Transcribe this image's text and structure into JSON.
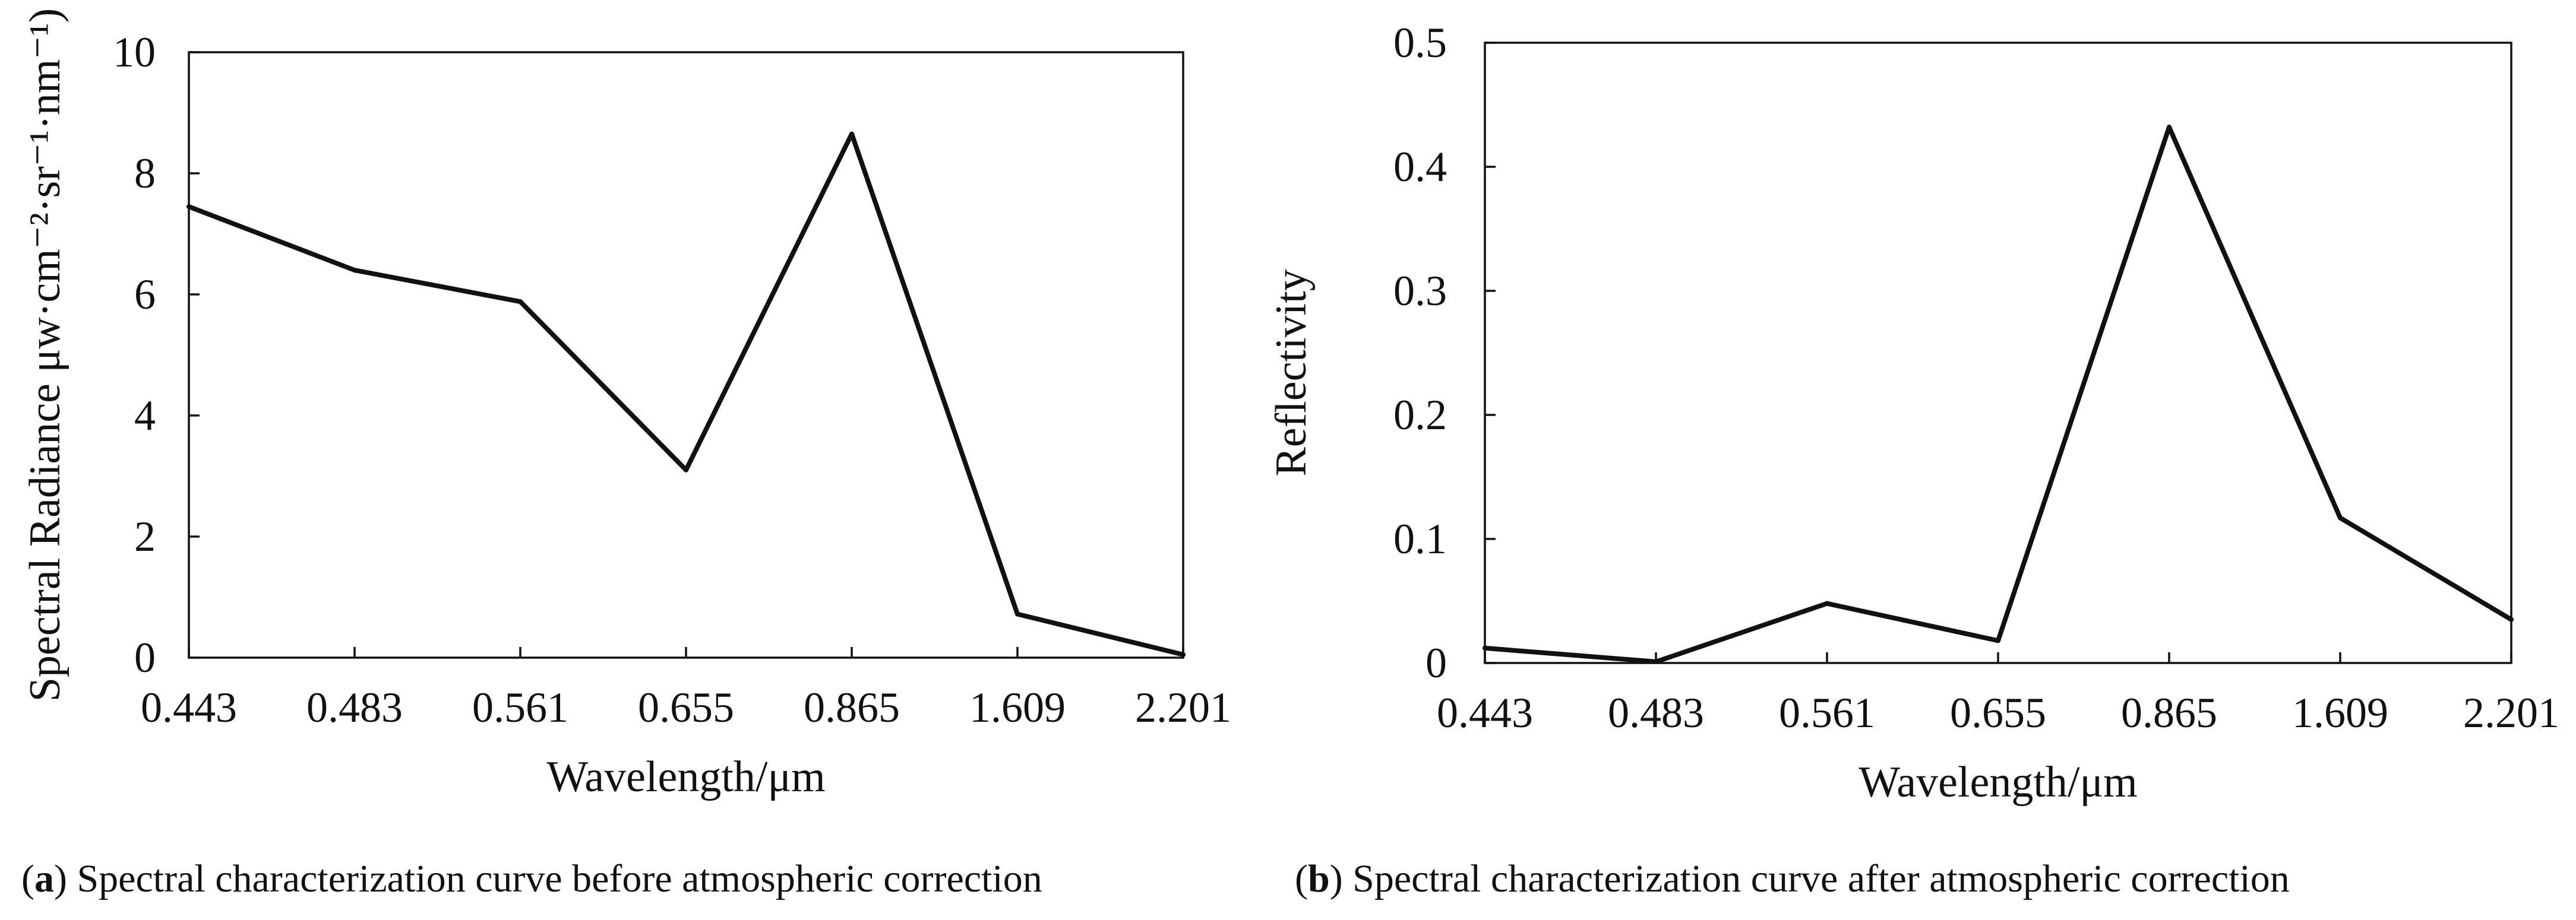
{
  "colors": {
    "line": "#111111",
    "background": "#ffffff"
  },
  "chart_data": [
    {
      "type": "line",
      "categories": [
        "0.443",
        "0.483",
        "0.561",
        "0.655",
        "0.865",
        "1.609",
        "2.201"
      ],
      "series": [
        {
          "values": [
            7.45,
            6.4,
            5.88,
            3.1,
            8.65,
            0.72,
            0.05
          ]
        }
      ],
      "xlabel": "Wavelength/μm",
      "ylabel": "Spectral Radiance μw·cm⁻²·sr⁻¹·nm⁻¹)",
      "ylim": [
        0,
        10
      ],
      "yticks": [
        "0",
        "2",
        "4",
        "6",
        "8",
        "10"
      ],
      "grid": false,
      "caption_letter": "a",
      "caption_open": "(",
      "caption_rest": ") Spectral characterization curve before atmospheric correction"
    },
    {
      "type": "line",
      "categories": [
        "0.443",
        "0.483",
        "0.561",
        "0.655",
        "0.865",
        "1.609",
        "2.201"
      ],
      "series": [
        {
          "values": [
            0.012,
            0.001,
            0.048,
            0.018,
            0.432,
            0.117,
            0.035
          ]
        }
      ],
      "xlabel": "Wavelength/μm",
      "ylabel": "Reflectivity",
      "ylim": [
        0,
        0.5
      ],
      "yticks": [
        "0",
        "0.1",
        "0.2",
        "0.3",
        "0.4",
        "0.5"
      ],
      "grid": false,
      "caption_letter": "b",
      "caption_open": "(",
      "caption_rest": ") Spectral characterization curve after atmospheric correction"
    }
  ]
}
